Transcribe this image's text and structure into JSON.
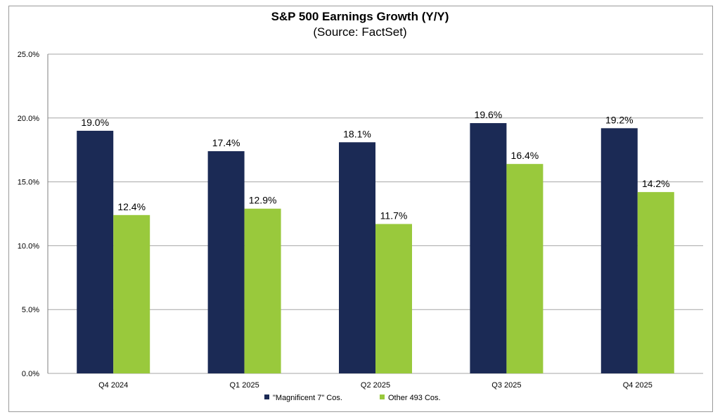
{
  "chart_data": {
    "type": "bar",
    "title": "S&P 500 Earnings Growth (Y/Y)",
    "subtitle": "(Source: FactSet)",
    "categories": [
      "Q4 2024",
      "Q1 2025",
      "Q2 2025",
      "Q3 2025",
      "Q4 2025"
    ],
    "series": [
      {
        "name": "\"Magnificent 7\" Cos.",
        "color": "#1b2a55",
        "values": [
          19.0,
          17.4,
          18.1,
          19.6,
          19.2
        ],
        "labels": [
          "19.0%",
          "17.4%",
          "18.1%",
          "19.6%",
          "19.2%"
        ]
      },
      {
        "name": "Other 493 Cos.",
        "color": "#99c93c",
        "values": [
          12.4,
          12.9,
          11.7,
          16.4,
          14.2
        ],
        "labels": [
          "12.4%",
          "12.9%",
          "11.7%",
          "16.4%",
          "14.2%"
        ]
      }
    ],
    "xlabel": "",
    "ylabel": "",
    "ylim": [
      0,
      25
    ],
    "yticks": [
      0,
      5,
      10,
      15,
      20,
      25
    ],
    "ytick_labels": [
      "0.0%",
      "5.0%",
      "10.0%",
      "15.0%",
      "20.0%",
      "25.0%"
    ],
    "grid": true,
    "grid_color": "#a6a6a6",
    "legend_position": "bottom-center"
  }
}
